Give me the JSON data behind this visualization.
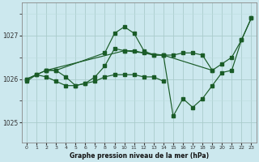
{
  "background_color": "#cce8ee",
  "grid_color_major": "#aacccc",
  "grid_color_minor": "#bbdddd",
  "line_color": "#1a5c28",
  "title": "Graphe pression niveau de la mer (hPa)",
  "xlim": [
    -0.5,
    23.5
  ],
  "ylim": [
    1024.55,
    1027.75
  ],
  "yticks": [
    1025,
    1026,
    1027
  ],
  "xticks": [
    0,
    1,
    2,
    3,
    4,
    5,
    6,
    7,
    8,
    9,
    10,
    11,
    12,
    13,
    14,
    15,
    16,
    17,
    18,
    19,
    20,
    21,
    22,
    23
  ],
  "series": [
    {
      "x": [
        0,
        2,
        10,
        14,
        19,
        20,
        21,
        22,
        23
      ],
      "y": [
        1026.0,
        1026.2,
        1026.65,
        1026.55,
        1026.2,
        1026.35,
        1026.5,
        1026.9,
        1027.4
      ]
    },
    {
      "x": [
        0,
        1,
        2,
        3,
        8,
        9,
        10,
        11,
        12,
        13,
        14,
        15,
        16,
        17,
        18,
        19,
        20,
        21,
        22,
        23
      ],
      "y": [
        1026.0,
        1026.1,
        1026.2,
        1026.2,
        1026.6,
        1027.05,
        1027.2,
        1027.05,
        1026.65,
        1026.55,
        1026.55,
        1025.15,
        1025.55,
        1025.35,
        1025.55,
        1025.85,
        1026.15,
        1026.2,
        1026.9,
        1027.4
      ]
    },
    {
      "x": [
        2,
        3,
        4,
        5,
        6,
        7,
        8,
        9,
        10,
        11,
        12,
        13,
        14,
        15,
        16,
        17,
        18,
        19
      ],
      "y": [
        1026.2,
        1026.2,
        1026.05,
        1025.85,
        1025.9,
        1026.05,
        1026.3,
        1026.7,
        1026.65,
        1026.65,
        1026.6,
        1026.55,
        1026.55,
        1026.55,
        1026.6,
        1026.6,
        1026.55,
        1026.2
      ]
    },
    {
      "x": [
        0,
        1,
        2,
        3,
        4,
        5,
        6,
        7,
        8,
        9,
        10,
        11,
        12,
        13,
        14
      ],
      "y": [
        1025.95,
        1026.1,
        1026.05,
        1025.95,
        1025.85,
        1025.85,
        1025.9,
        1025.95,
        1026.05,
        1026.1,
        1026.1,
        1026.1,
        1026.05,
        1026.05,
        1025.95
      ]
    }
  ]
}
